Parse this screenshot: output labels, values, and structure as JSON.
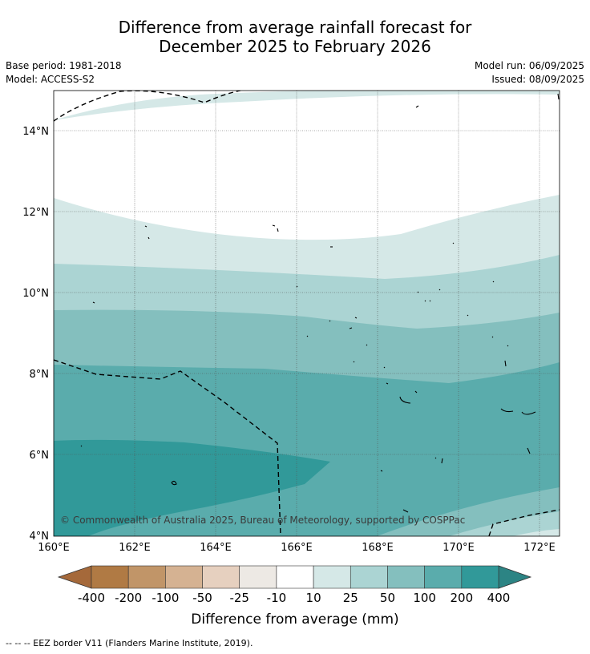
{
  "header": {
    "title_line1": "Difference from average rainfall forecast for",
    "title_line2": "December 2025 to February 2026",
    "base_period": "Base period: 1981-2018",
    "model": "Model: ACCESS-S2",
    "model_run": "Model run: 06/09/2025",
    "issued": "Issued: 08/09/2025"
  },
  "map": {
    "lat_labels": [
      "14°N",
      "12°N",
      "10°N",
      "8°N",
      "6°N",
      "4°N"
    ],
    "lon_labels": [
      "160°E",
      "162°E",
      "164°E",
      "166°E",
      "168°E",
      "170°E",
      "172°E"
    ],
    "copyright": "© Commonwealth of Australia 2025, Bureau of Meteorology, supported by COSPPac"
  },
  "colorbar": {
    "labels": [
      "-400",
      "-200",
      "-100",
      "-50",
      "-25",
      "-10",
      "10",
      "25",
      "50",
      "100",
      "200",
      "400"
    ],
    "colors": [
      "#a5693a",
      "#b07a44",
      "#c19568",
      "#d5b292",
      "#e6d0bf",
      "#ede9e4",
      "#ffffff",
      "#d5e8e7",
      "#abd4d3",
      "#84bfbe",
      "#5aacac",
      "#319999",
      "#2c8484"
    ],
    "title": "Difference from average (mm)"
  },
  "footer": {
    "legend": "--  --  -- EEZ border V11 (Flanders Marine Institute, 2019)."
  }
}
